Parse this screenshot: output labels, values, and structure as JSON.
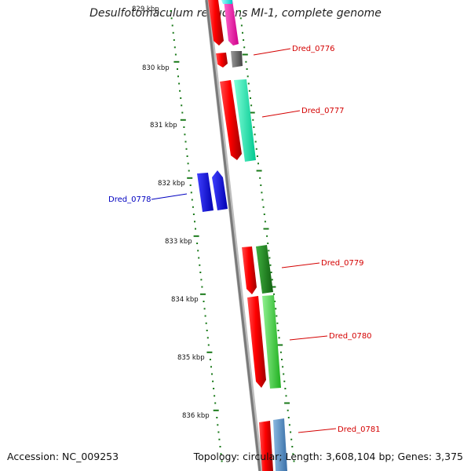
{
  "title": "Desulfotomaculum reducens MI-1, complete genome",
  "footer": {
    "accession": "Accession: NC_009253",
    "topology": "Topology: circular; Length: 3,608,104 bp; Genes: 3,375"
  },
  "colors": {
    "backbone": "#8a8a8a",
    "tick": "#1a7a1a",
    "label_red": "#d40000",
    "label_blue": "#0000c0"
  },
  "kbp_labels": [
    "829 kbp",
    "830 kbp",
    "831 kbp",
    "832 kbp",
    "833 kbp",
    "834 kbp",
    "835 kbp",
    "836 kbp"
  ],
  "genes": [
    {
      "name": "Dred_0776",
      "label_color": "red"
    },
    {
      "name": "Dred_0777",
      "label_color": "red"
    },
    {
      "name": "Dred_0778",
      "label_color": "blue"
    },
    {
      "name": "Dred_0779",
      "label_color": "red"
    },
    {
      "name": "Dred_0780",
      "label_color": "red"
    },
    {
      "name": "Dred_0781",
      "label_color": "red"
    }
  ]
}
